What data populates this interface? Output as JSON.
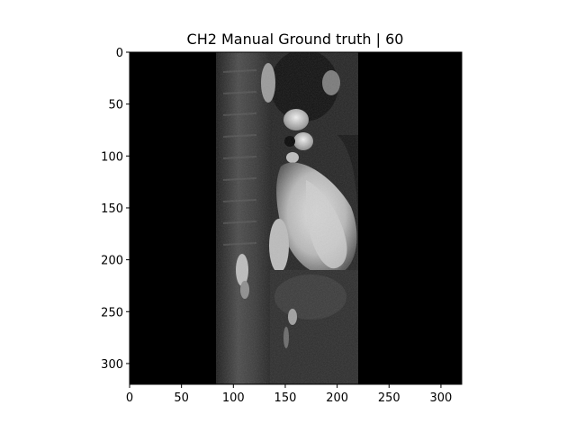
{
  "figure": {
    "title": "CH2 Manual Ground truth | 60",
    "x_ticks": [
      "0",
      "50",
      "100",
      "150",
      "200",
      "250",
      "300"
    ],
    "y_ticks": [
      "0",
      "50",
      "100",
      "150",
      "200",
      "250",
      "300"
    ],
    "image_extent": {
      "width": 320,
      "height": 320
    },
    "scan_strip_x_range": [
      83,
      221
    ],
    "colors": {
      "background": "#ffffff",
      "image_background": "#000000",
      "tissue_dark": "#2a2a2a",
      "tissue_mid": "#6a6a6a",
      "blood_bright": "#d8d8d8"
    }
  }
}
